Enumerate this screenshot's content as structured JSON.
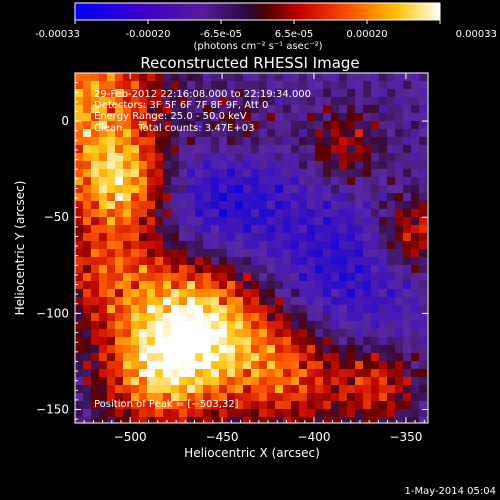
{
  "colorbar": {
    "tick_labels": [
      "-0.00033",
      "-0.00020",
      "-6.5e-05",
      "6.5e-05",
      "0.00020",
      "0.00033"
    ],
    "unit_label": "(photons cm⁻² s⁻¹ asec⁻²)",
    "range": [
      -0.00033,
      0.00033
    ],
    "colors": [
      "#0000ff",
      "#5a0090",
      "#3b1a6e",
      "#ff0000",
      "#ffa500",
      "#ffffff"
    ]
  },
  "chart_data": {
    "type": "heatmap",
    "title": "Reconstructed RHESSI Image",
    "xlabel": "Heliocentric X (arcsec)",
    "ylabel": "Heliocentric Y (arcsec)",
    "xlim": [
      -530,
      -338
    ],
    "ylim": [
      -157,
      25
    ],
    "xticks": [
      -500,
      -450,
      -400,
      -350
    ],
    "xtick_labels": [
      "−500",
      "−450",
      "−400",
      "−350"
    ],
    "yticks": [
      0,
      -50,
      -100,
      -150
    ],
    "ytick_labels": [
      "0",
      "−50",
      "−100",
      "−150"
    ],
    "peak": [
      -503,
      32
    ],
    "colorscale": "rhessi-blue-purple-red-yellow-white",
    "info_lines": [
      "29-Feb-2012 22:16:08.000 to 22:19:34.000",
      "Detectors: 3F 5F 6F 7F 8F 9F, Att 0",
      "Energy Range: 25.0 - 50.0 keV",
      "Clean     Total counts: 3.47E+03"
    ],
    "peak_label": "Position of Peak = [−503,32]"
  },
  "footer": {
    "date": "1-May-2014 05:04"
  }
}
